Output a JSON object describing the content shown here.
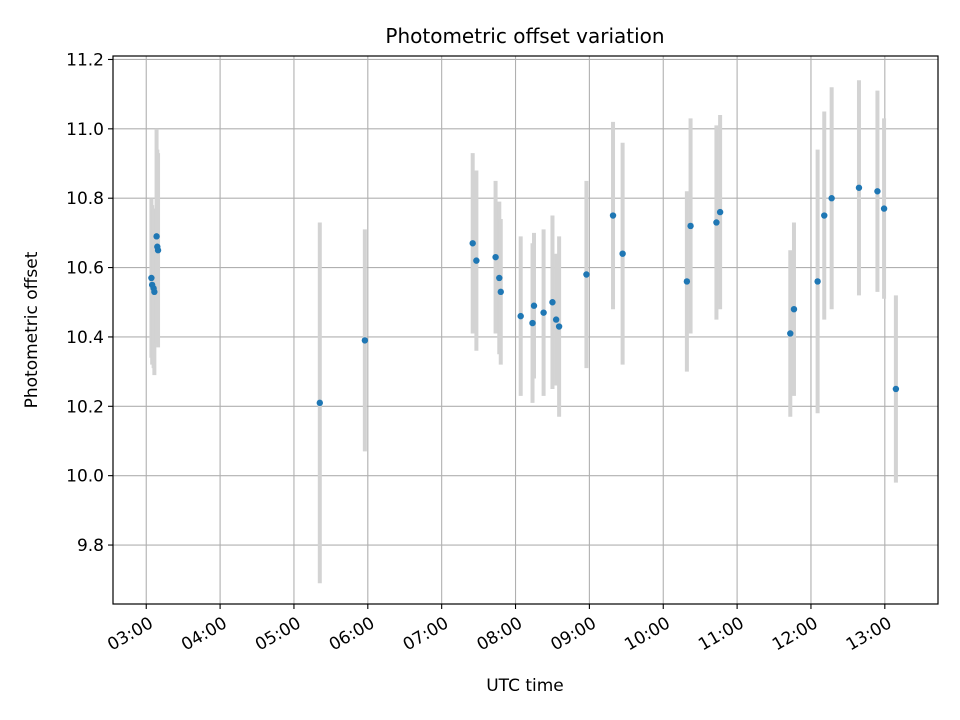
{
  "chart_data": {
    "type": "scatter",
    "title": "Photometric offset variation",
    "xlabel": "UTC time",
    "ylabel": "Photometric offset",
    "grid": true,
    "x_unit": "UTC time (hours)",
    "xlim": [
      2.55,
      13.72
    ],
    "ylim": [
      9.63,
      11.21
    ],
    "x_ticks": [
      {
        "value": 3,
        "label": "03:00"
      },
      {
        "value": 4,
        "label": "04:00"
      },
      {
        "value": 5,
        "label": "05:00"
      },
      {
        "value": 6,
        "label": "06:00"
      },
      {
        "value": 7,
        "label": "07:00"
      },
      {
        "value": 8,
        "label": "08:00"
      },
      {
        "value": 9,
        "label": "09:00"
      },
      {
        "value": 10,
        "label": "10:00"
      },
      {
        "value": 11,
        "label": "11:00"
      },
      {
        "value": 12,
        "label": "12:00"
      },
      {
        "value": 13,
        "label": "13:00"
      }
    ],
    "y_ticks": [
      {
        "value": 9.8,
        "label": "9.8"
      },
      {
        "value": 10.0,
        "label": "10.0"
      },
      {
        "value": 10.2,
        "label": "10.2"
      },
      {
        "value": 10.4,
        "label": "10.4"
      },
      {
        "value": 10.6,
        "label": "10.6"
      },
      {
        "value": 10.8,
        "label": "10.8"
      },
      {
        "value": 11.0,
        "label": "11.0"
      },
      {
        "value": 11.2,
        "label": "11.2"
      }
    ],
    "colors": {
      "point": "#1f77b4",
      "errorbar": "#d3d3d3"
    },
    "series": [
      {
        "points": [
          {
            "x": 3.07,
            "y": 10.57,
            "err": 0.23
          },
          {
            "x": 3.08,
            "y": 10.55,
            "err": 0.23
          },
          {
            "x": 3.1,
            "y": 10.54,
            "err": 0.23
          },
          {
            "x": 3.11,
            "y": 10.53,
            "err": 0.24
          },
          {
            "x": 3.14,
            "y": 10.69,
            "err": 0.31
          },
          {
            "x": 3.15,
            "y": 10.66,
            "err": 0.28
          },
          {
            "x": 3.16,
            "y": 10.65,
            "err": 0.28
          },
          {
            "x": 5.35,
            "y": 10.21,
            "err": 0.52
          },
          {
            "x": 5.96,
            "y": 10.39,
            "err": 0.32
          },
          {
            "x": 7.42,
            "y": 10.67,
            "err": 0.26
          },
          {
            "x": 7.47,
            "y": 10.62,
            "err": 0.26
          },
          {
            "x": 7.73,
            "y": 10.63,
            "err": 0.22
          },
          {
            "x": 7.78,
            "y": 10.57,
            "err": 0.22
          },
          {
            "x": 7.8,
            "y": 10.53,
            "err": 0.21
          },
          {
            "x": 8.07,
            "y": 10.46,
            "err": 0.23
          },
          {
            "x": 8.23,
            "y": 10.44,
            "err": 0.23
          },
          {
            "x": 8.25,
            "y": 10.49,
            "err": 0.21
          },
          {
            "x": 8.38,
            "y": 10.47,
            "err": 0.24
          },
          {
            "x": 8.5,
            "y": 10.5,
            "err": 0.25
          },
          {
            "x": 8.55,
            "y": 10.45,
            "err": 0.19
          },
          {
            "x": 8.59,
            "y": 10.43,
            "err": 0.26
          },
          {
            "x": 8.96,
            "y": 10.58,
            "err": 0.27
          },
          {
            "x": 9.32,
            "y": 10.75,
            "err": 0.27
          },
          {
            "x": 9.45,
            "y": 10.64,
            "err": 0.32
          },
          {
            "x": 10.32,
            "y": 10.56,
            "err": 0.26
          },
          {
            "x": 10.37,
            "y": 10.72,
            "err": 0.31
          },
          {
            "x": 10.72,
            "y": 10.73,
            "err": 0.28
          },
          {
            "x": 10.77,
            "y": 10.76,
            "err": 0.28
          },
          {
            "x": 11.72,
            "y": 10.41,
            "err": 0.24
          },
          {
            "x": 11.77,
            "y": 10.48,
            "err": 0.25
          },
          {
            "x": 12.09,
            "y": 10.56,
            "err": 0.38
          },
          {
            "x": 12.18,
            "y": 10.75,
            "err": 0.3
          },
          {
            "x": 12.28,
            "y": 10.8,
            "err": 0.32
          },
          {
            "x": 12.65,
            "y": 10.83,
            "err": 0.31
          },
          {
            "x": 12.9,
            "y": 10.82,
            "err": 0.29
          },
          {
            "x": 12.99,
            "y": 10.77,
            "err": 0.26
          },
          {
            "x": 13.15,
            "y": 10.25,
            "err": 0.27
          }
        ]
      }
    ]
  }
}
